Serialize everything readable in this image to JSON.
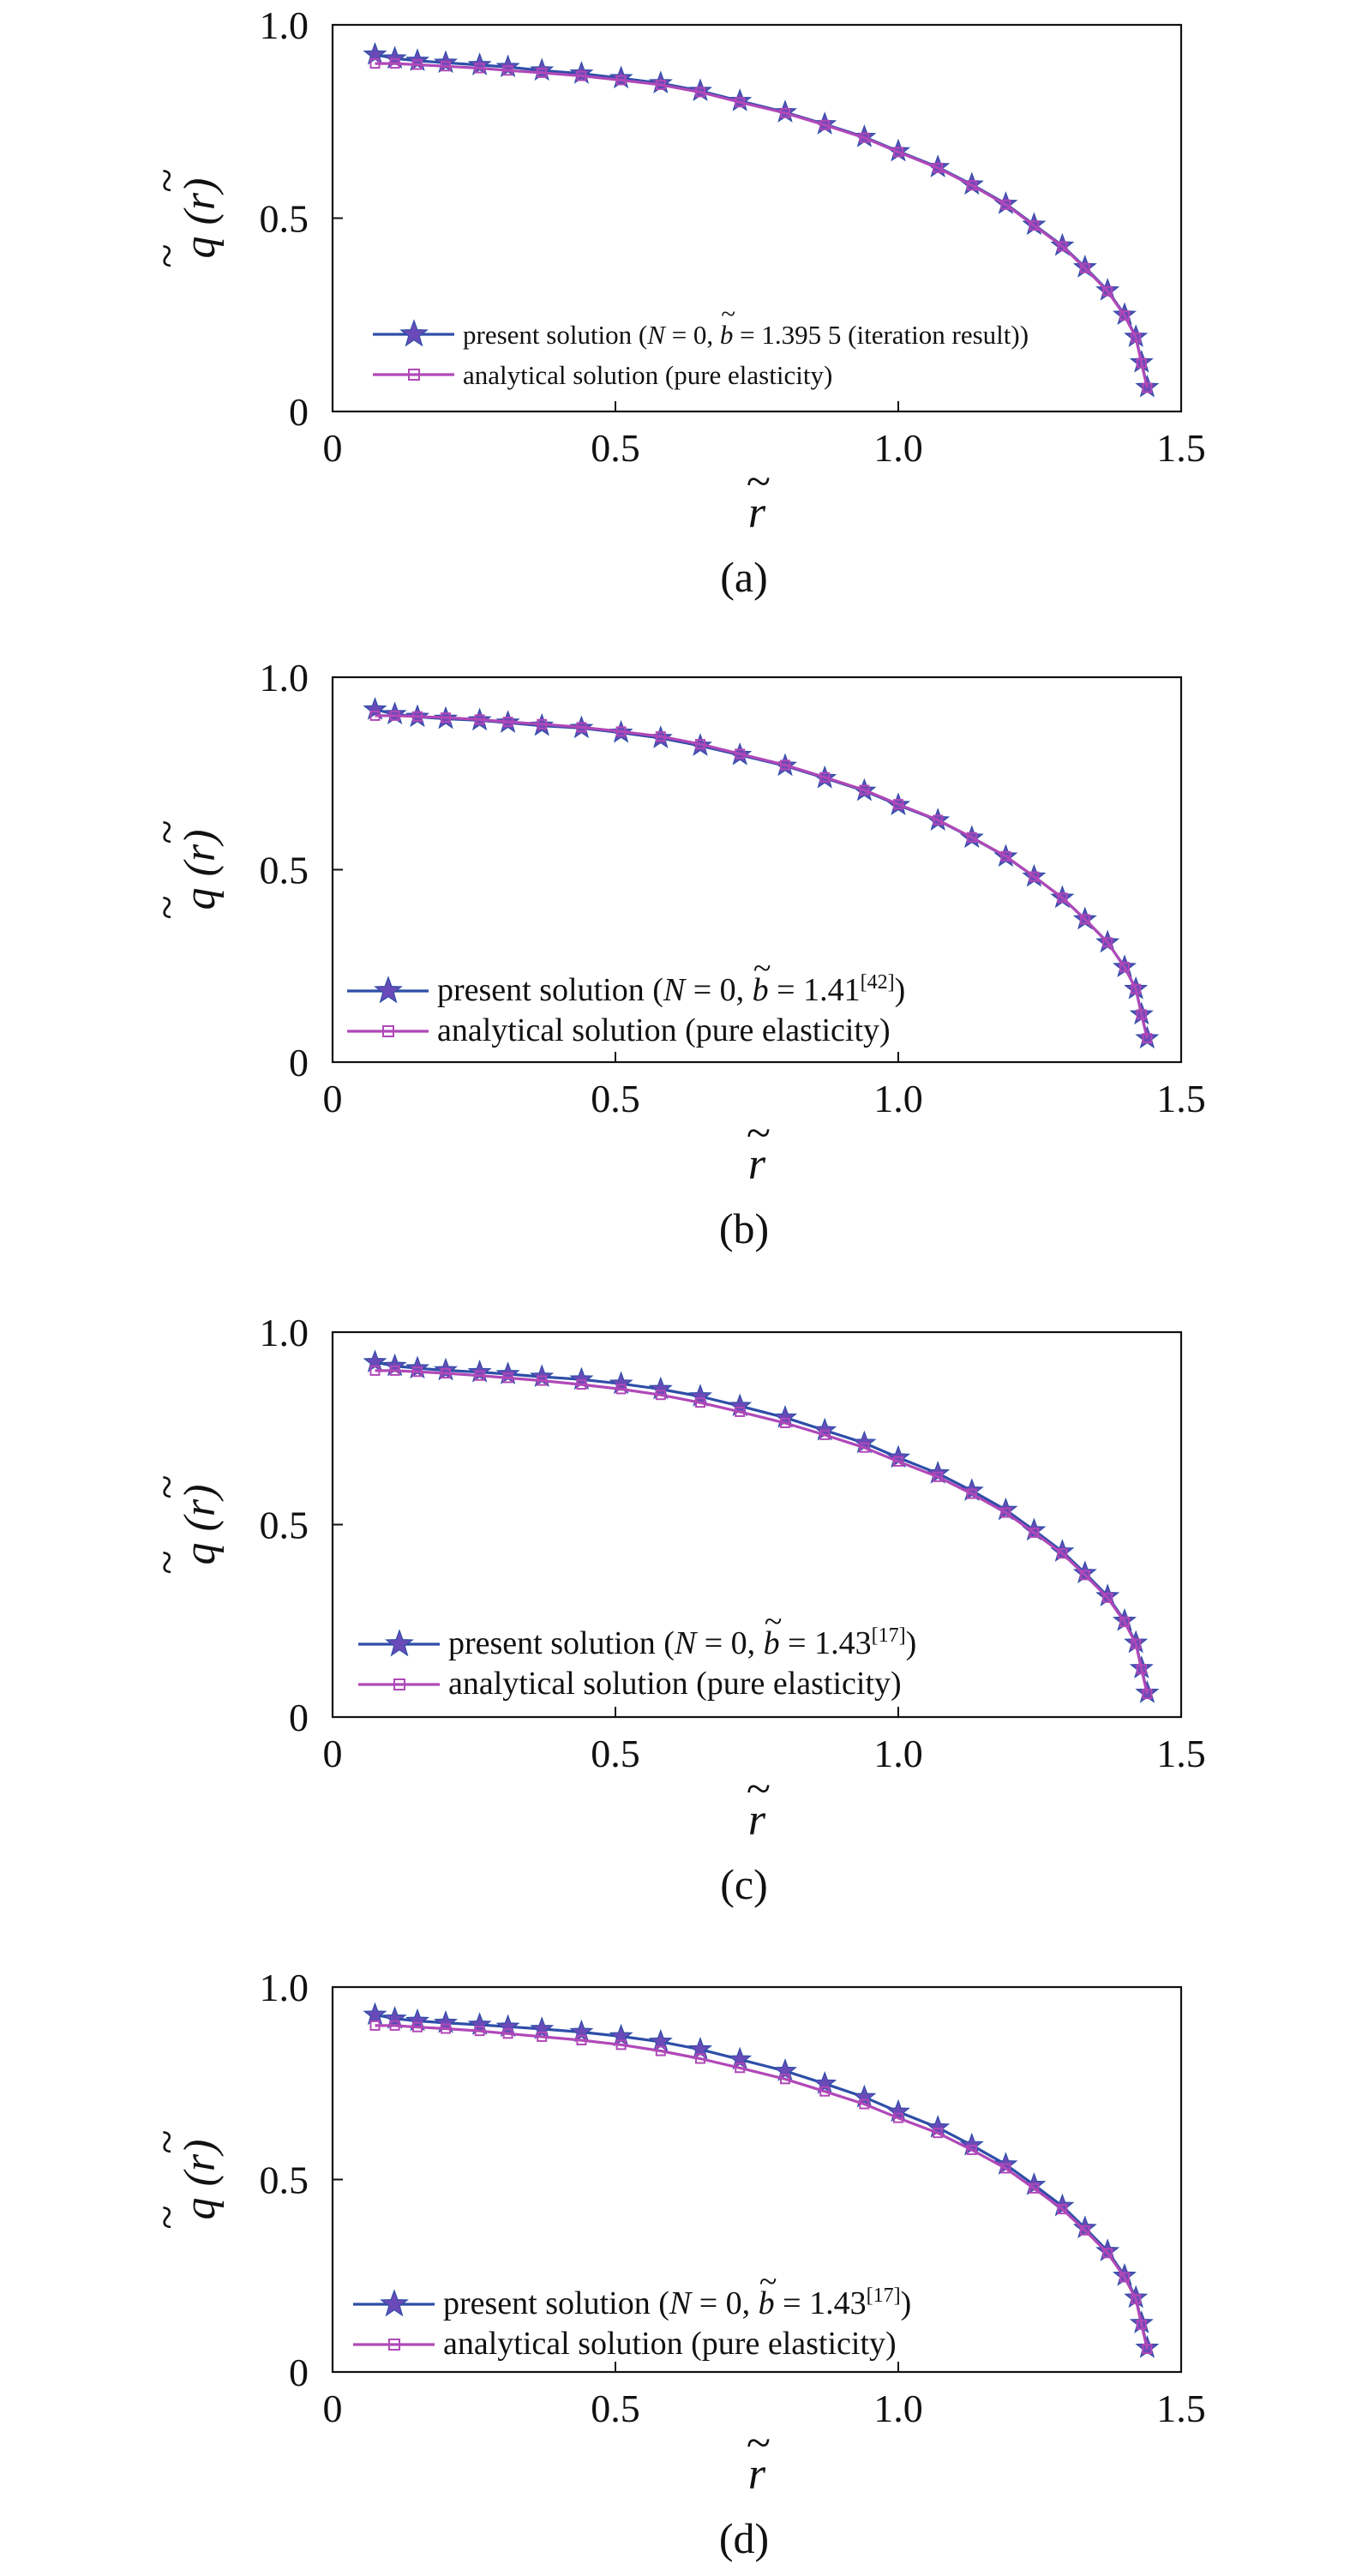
{
  "colors": {
    "present": "#2E4EA8",
    "analytical": "#B048B8",
    "star_fill": "#6A4AB8"
  },
  "chart_data": [
    {
      "type": "line",
      "panel_label": "(a)",
      "xlabel": "r",
      "ylabel": "q (r)",
      "xlim": [
        0,
        1.5
      ],
      "ylim": [
        0,
        1.0
      ],
      "xticks": [
        "0",
        "0.5",
        "1.0",
        "1.5"
      ],
      "yticks": [
        "0",
        "0.5",
        "1.0"
      ],
      "legend_position": "bottom-left",
      "legend": [
        {
          "pre": "present solution (",
          "n_var": "N",
          "n_val": " = 0, ",
          "b_var": "b",
          "b_val": " = 1.395 5 (iteration result))",
          "sup": "",
          "post": "",
          "marker": "star"
        },
        {
          "pre": "analytical solution (pure elasticity)",
          "n_var": "",
          "n_val": "",
          "b_var": "",
          "b_val": "",
          "sup": "",
          "post": "",
          "marker": "square"
        }
      ],
      "series": [
        {
          "name": "present solution",
          "x": [
            0.075,
            0.11,
            0.15,
            0.2,
            0.26,
            0.31,
            0.37,
            0.44,
            0.51,
            0.58,
            0.65,
            0.72,
            0.8,
            0.87,
            0.94,
            1.0,
            1.07,
            1.13,
            1.19,
            1.24,
            1.29,
            1.33,
            1.37,
            1.4,
            1.42,
            1.43,
            1.44
          ],
          "y": [
            0.923,
            0.913,
            0.907,
            0.902,
            0.896,
            0.891,
            0.882,
            0.874,
            0.862,
            0.849,
            0.829,
            0.803,
            0.774,
            0.743,
            0.71,
            0.673,
            0.632,
            0.587,
            0.537,
            0.483,
            0.429,
            0.373,
            0.313,
            0.25,
            0.193,
            0.127,
            0.063
          ]
        },
        {
          "name": "analytical solution",
          "x": [
            0.075,
            0.11,
            0.15,
            0.2,
            0.26,
            0.31,
            0.37,
            0.44,
            0.51,
            0.58,
            0.65,
            0.72,
            0.8,
            0.87,
            0.94,
            1.0,
            1.07,
            1.13,
            1.19,
            1.24,
            1.29,
            1.33,
            1.37,
            1.4,
            1.42,
            1.43,
            1.44
          ],
          "y": [
            0.9,
            0.9,
            0.897,
            0.893,
            0.888,
            0.882,
            0.876,
            0.868,
            0.857,
            0.845,
            0.826,
            0.8,
            0.772,
            0.741,
            0.708,
            0.671,
            0.63,
            0.585,
            0.535,
            0.481,
            0.427,
            0.371,
            0.311,
            0.248,
            0.191,
            0.125,
            0.061
          ]
        }
      ]
    },
    {
      "type": "line",
      "panel_label": "(b)",
      "xlabel": "r",
      "ylabel": "q (r)",
      "xlim": [
        0,
        1.5
      ],
      "ylim": [
        0,
        1.0
      ],
      "xticks": [
        "0",
        "0.5",
        "1.0",
        "1.5"
      ],
      "yticks": [
        "0",
        "0.5",
        "1.0"
      ],
      "legend_position": "bottom-left",
      "legend": [
        {
          "pre": "present solution (",
          "n_var": "N",
          "n_val": " = 0, ",
          "b_var": "b",
          "b_val": " = 1.41",
          "sup": "[42]",
          "post": ")",
          "marker": "star"
        },
        {
          "pre": "analytical solution (pure elasticity)",
          "n_var": "",
          "n_val": "",
          "b_var": "",
          "b_val": "",
          "sup": "",
          "post": "",
          "marker": "square"
        }
      ],
      "series": [
        {
          "name": "present solution",
          "x": [
            0.075,
            0.11,
            0.15,
            0.2,
            0.26,
            0.31,
            0.37,
            0.44,
            0.51,
            0.58,
            0.65,
            0.72,
            0.8,
            0.87,
            0.94,
            1.0,
            1.07,
            1.13,
            1.19,
            1.24,
            1.29,
            1.33,
            1.37,
            1.4,
            1.42,
            1.43,
            1.44
          ],
          "y": [
            0.916,
            0.904,
            0.897,
            0.892,
            0.888,
            0.882,
            0.874,
            0.868,
            0.856,
            0.842,
            0.822,
            0.798,
            0.77,
            0.738,
            0.705,
            0.668,
            0.628,
            0.583,
            0.534,
            0.482,
            0.427,
            0.371,
            0.311,
            0.247,
            0.19,
            0.124,
            0.062
          ]
        },
        {
          "name": "analytical solution",
          "x": [
            0.075,
            0.11,
            0.15,
            0.2,
            0.26,
            0.31,
            0.37,
            0.44,
            0.51,
            0.58,
            0.65,
            0.72,
            0.8,
            0.87,
            0.94,
            1.0,
            1.07,
            1.13,
            1.19,
            1.24,
            1.29,
            1.33,
            1.37,
            1.4,
            1.42,
            1.43,
            1.44
          ],
          "y": [
            0.9,
            0.9,
            0.898,
            0.895,
            0.89,
            0.884,
            0.878,
            0.87,
            0.859,
            0.846,
            0.826,
            0.801,
            0.772,
            0.74,
            0.707,
            0.67,
            0.629,
            0.584,
            0.535,
            0.482,
            0.427,
            0.371,
            0.311,
            0.247,
            0.19,
            0.124,
            0.062
          ]
        }
      ]
    },
    {
      "type": "line",
      "panel_label": "(c)",
      "xlabel": "r",
      "ylabel": "q (r)",
      "xlim": [
        0,
        1.5
      ],
      "ylim": [
        0,
        1.0
      ],
      "xticks": [
        "0",
        "0.5",
        "1.0",
        "1.5"
      ],
      "yticks": [
        "0",
        "0.5",
        "1.0"
      ],
      "legend_position": "bottom-left",
      "legend": [
        {
          "pre": "present solution (",
          "n_var": "N",
          "n_val": " = 0, ",
          "b_var": "b",
          "b_val": " = 1.43",
          "sup": "[17]",
          "post": ")",
          "marker": "star"
        },
        {
          "pre": "analytical solution (pure elasticity)",
          "n_var": "",
          "n_val": "",
          "b_var": "",
          "b_val": "",
          "sup": "",
          "post": "",
          "marker": "square"
        }
      ],
      "series": [
        {
          "name": "present solution",
          "x": [
            0.075,
            0.11,
            0.15,
            0.2,
            0.26,
            0.31,
            0.37,
            0.44,
            0.51,
            0.58,
            0.65,
            0.72,
            0.8,
            0.87,
            0.94,
            1.0,
            1.07,
            1.13,
            1.19,
            1.24,
            1.29,
            1.33,
            1.37,
            1.4,
            1.42,
            1.43,
            1.44
          ],
          "y": [
            0.922,
            0.912,
            0.906,
            0.901,
            0.896,
            0.891,
            0.884,
            0.877,
            0.866,
            0.852,
            0.833,
            0.808,
            0.778,
            0.745,
            0.712,
            0.674,
            0.633,
            0.588,
            0.538,
            0.485,
            0.43,
            0.374,
            0.314,
            0.25,
            0.193,
            0.127,
            0.063
          ]
        },
        {
          "name": "analytical solution",
          "x": [
            0.075,
            0.11,
            0.15,
            0.2,
            0.26,
            0.31,
            0.37,
            0.44,
            0.51,
            0.58,
            0.65,
            0.72,
            0.8,
            0.87,
            0.94,
            1.0,
            1.07,
            1.13,
            1.19,
            1.24,
            1.29,
            1.33,
            1.37,
            1.4,
            1.42,
            1.43,
            1.44
          ],
          "y": [
            0.9,
            0.9,
            0.897,
            0.893,
            0.887,
            0.881,
            0.874,
            0.864,
            0.852,
            0.837,
            0.817,
            0.793,
            0.764,
            0.733,
            0.7,
            0.664,
            0.624,
            0.58,
            0.531,
            0.479,
            0.425,
            0.369,
            0.31,
            0.247,
            0.19,
            0.124,
            0.06
          ]
        }
      ]
    },
    {
      "type": "line",
      "panel_label": "(d)",
      "xlabel": "r",
      "ylabel": "q (r)",
      "xlim": [
        0,
        1.5
      ],
      "ylim": [
        0,
        1.0
      ],
      "xticks": [
        "0",
        "0.5",
        "1.0",
        "1.5"
      ],
      "yticks": [
        "0",
        "0.5",
        "1.0"
      ],
      "legend_position": "bottom-left",
      "legend": [
        {
          "pre": "present solution (",
          "n_var": "N",
          "n_val": " = 0, ",
          "b_var": "b",
          "b_val": " = 1.43",
          "sup": "[17]",
          "post": ")",
          "marker": "star"
        },
        {
          "pre": "analytical solution (pure elasticity)",
          "n_var": "",
          "n_val": "",
          "b_var": "",
          "b_val": "",
          "sup": "",
          "post": "",
          "marker": "square"
        }
      ],
      "series": [
        {
          "name": "present solution",
          "x": [
            0.075,
            0.11,
            0.15,
            0.2,
            0.26,
            0.31,
            0.37,
            0.44,
            0.51,
            0.58,
            0.65,
            0.72,
            0.8,
            0.87,
            0.94,
            1.0,
            1.07,
            1.13,
            1.19,
            1.24,
            1.29,
            1.33,
            1.37,
            1.4,
            1.42,
            1.43,
            1.44
          ],
          "y": [
            0.928,
            0.918,
            0.912,
            0.907,
            0.902,
            0.897,
            0.891,
            0.883,
            0.872,
            0.858,
            0.838,
            0.812,
            0.782,
            0.749,
            0.714,
            0.676,
            0.635,
            0.589,
            0.539,
            0.486,
            0.431,
            0.374,
            0.314,
            0.25,
            0.193,
            0.127,
            0.063
          ]
        },
        {
          "name": "analytical solution",
          "x": [
            0.075,
            0.11,
            0.15,
            0.2,
            0.26,
            0.31,
            0.37,
            0.44,
            0.51,
            0.58,
            0.65,
            0.72,
            0.8,
            0.87,
            0.94,
            1.0,
            1.07,
            1.13,
            1.19,
            1.24,
            1.29,
            1.33,
            1.37,
            1.4,
            1.42,
            1.43,
            1.44
          ],
          "y": [
            0.9,
            0.9,
            0.896,
            0.892,
            0.886,
            0.879,
            0.871,
            0.862,
            0.85,
            0.834,
            0.814,
            0.79,
            0.761,
            0.729,
            0.696,
            0.66,
            0.621,
            0.577,
            0.529,
            0.477,
            0.423,
            0.368,
            0.309,
            0.246,
            0.189,
            0.123,
            0.06
          ]
        }
      ]
    }
  ]
}
